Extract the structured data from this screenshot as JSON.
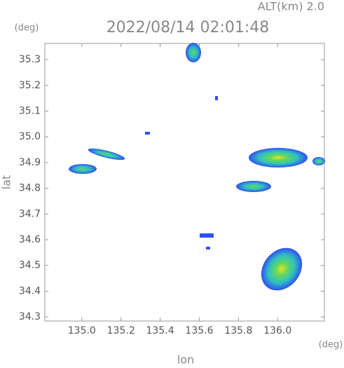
{
  "chart_data": {
    "type": "map",
    "title": "2022/08/14 02:01:48",
    "subtitle": "ALT(km) 2.0",
    "x_label": "lon",
    "y_label": "lat",
    "x_unit": "(deg)",
    "y_unit": "(deg)",
    "xlim": [
      134.811,
      136.239
    ],
    "ylim": [
      34.284,
      35.363
    ],
    "xticks": [
      {
        "value": 135,
        "label": "135.0"
      },
      135.2,
      135.4,
      135.6,
      135.8,
      {
        "value": 136,
        "label": "136.0"
      }
    ],
    "yticks": [
      34.3,
      34.4,
      34.5,
      34.6,
      34.7,
      34.8,
      34.9,
      {
        "value": 35,
        "label": "35.0"
      },
      35.1,
      35.2,
      35.3
    ]
  }
}
